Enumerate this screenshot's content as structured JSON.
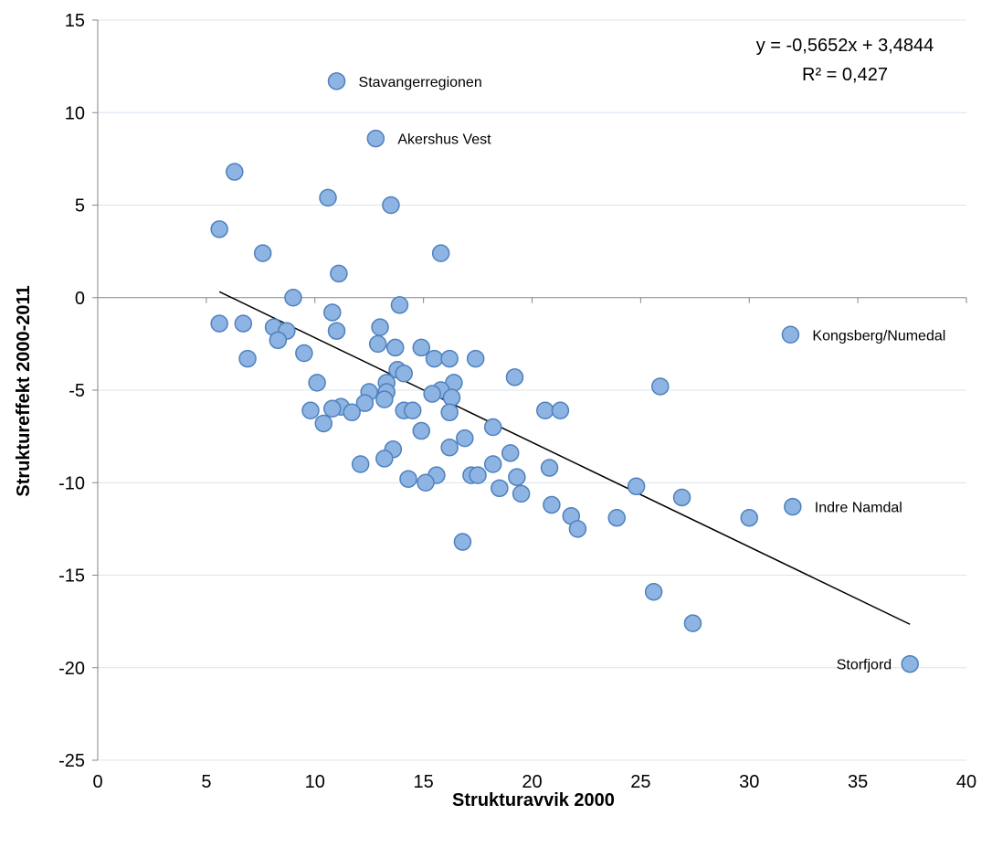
{
  "chart_data": {
    "type": "scatter",
    "xlabel": "Strukturavvik 2000",
    "ylabel": "Struktureffekt 2000-2011",
    "xlim": [
      0,
      40
    ],
    "ylim": [
      -25,
      15
    ],
    "x_ticks": [
      "0",
      "5",
      "10",
      "15",
      "20",
      "25",
      "30",
      "35",
      "40"
    ],
    "y_ticks": [
      "15",
      "10",
      "5",
      "0",
      "-5",
      "-10",
      "-15",
      "-20",
      "-25"
    ],
    "gridlines": "horizontal",
    "marker_color": "#8DB4E2",
    "marker_edge_color": "#4F81BD",
    "trendline": {
      "type": "linear",
      "equation": "y = -0,5652x + 3,4844",
      "r_squared": "R² = 0,427",
      "slope": -0.5652,
      "intercept": 3.4844,
      "x_range": [
        5.6,
        37.4
      ],
      "color": "#000000"
    },
    "labeled_points": [
      {
        "name": "Stavangerregionen",
        "x": 11.0,
        "y": 11.7
      },
      {
        "name": "Akershus Vest",
        "x": 12.8,
        "y": 8.6
      },
      {
        "name": "Kongsberg/Numedal",
        "x": 31.9,
        "y": -2.0
      },
      {
        "name": "Indre Namdal",
        "x": 32.0,
        "y": -11.3
      },
      {
        "name": "Storfjord",
        "x": 37.4,
        "y": -19.8
      }
    ],
    "points": [
      [
        11.0,
        11.7
      ],
      [
        12.8,
        8.6
      ],
      [
        6.3,
        6.8
      ],
      [
        10.6,
        5.4
      ],
      [
        13.5,
        5.0
      ],
      [
        5.6,
        3.7
      ],
      [
        7.6,
        2.4
      ],
      [
        15.8,
        2.4
      ],
      [
        11.1,
        1.3
      ],
      [
        9.0,
        0.0
      ],
      [
        13.9,
        -0.4
      ],
      [
        10.8,
        -0.8
      ],
      [
        5.6,
        -1.4
      ],
      [
        6.7,
        -1.4
      ],
      [
        8.1,
        -1.6
      ],
      [
        8.7,
        -1.8
      ],
      [
        11.0,
        -1.8
      ],
      [
        13.0,
        -1.6
      ],
      [
        8.3,
        -2.3
      ],
      [
        12.9,
        -2.5
      ],
      [
        13.7,
        -2.7
      ],
      [
        14.9,
        -2.7
      ],
      [
        9.5,
        -3.0
      ],
      [
        6.9,
        -3.3
      ],
      [
        15.5,
        -3.3
      ],
      [
        16.2,
        -3.3
      ],
      [
        17.4,
        -3.3
      ],
      [
        13.8,
        -3.9
      ],
      [
        14.1,
        -4.1
      ],
      [
        19.2,
        -4.3
      ],
      [
        10.1,
        -4.6
      ],
      [
        13.3,
        -4.6
      ],
      [
        16.4,
        -4.6
      ],
      [
        25.9,
        -4.8
      ],
      [
        15.8,
        -5.0
      ],
      [
        12.5,
        -5.1
      ],
      [
        13.3,
        -5.1
      ],
      [
        15.4,
        -5.2
      ],
      [
        16.3,
        -5.4
      ],
      [
        13.2,
        -5.5
      ],
      [
        12.3,
        -5.7
      ],
      [
        11.2,
        -5.9
      ],
      [
        10.8,
        -6.0
      ],
      [
        9.8,
        -6.1
      ],
      [
        14.1,
        -6.1
      ],
      [
        14.5,
        -6.1
      ],
      [
        20.6,
        -6.1
      ],
      [
        21.3,
        -6.1
      ],
      [
        11.7,
        -6.2
      ],
      [
        16.2,
        -6.2
      ],
      [
        10.4,
        -6.8
      ],
      [
        18.2,
        -7.0
      ],
      [
        14.9,
        -7.2
      ],
      [
        16.9,
        -7.6
      ],
      [
        16.2,
        -8.1
      ],
      [
        13.6,
        -8.2
      ],
      [
        19.0,
        -8.4
      ],
      [
        13.2,
        -8.7
      ],
      [
        12.1,
        -9.0
      ],
      [
        18.2,
        -9.0
      ],
      [
        20.8,
        -9.2
      ],
      [
        15.6,
        -9.6
      ],
      [
        17.2,
        -9.6
      ],
      [
        17.5,
        -9.6
      ],
      [
        14.3,
        -9.8
      ],
      [
        19.3,
        -9.7
      ],
      [
        15.1,
        -10.0
      ],
      [
        24.8,
        -10.2
      ],
      [
        18.5,
        -10.3
      ],
      [
        19.5,
        -10.6
      ],
      [
        26.9,
        -10.8
      ],
      [
        20.9,
        -11.2
      ],
      [
        21.8,
        -11.8
      ],
      [
        23.9,
        -11.9
      ],
      [
        30.0,
        -11.9
      ],
      [
        32.0,
        -11.3
      ],
      [
        22.1,
        -12.5
      ],
      [
        16.8,
        -13.2
      ],
      [
        25.6,
        -15.9
      ],
      [
        27.4,
        -17.6
      ],
      [
        37.4,
        -19.8
      ],
      [
        31.9,
        -2.0
      ]
    ]
  }
}
